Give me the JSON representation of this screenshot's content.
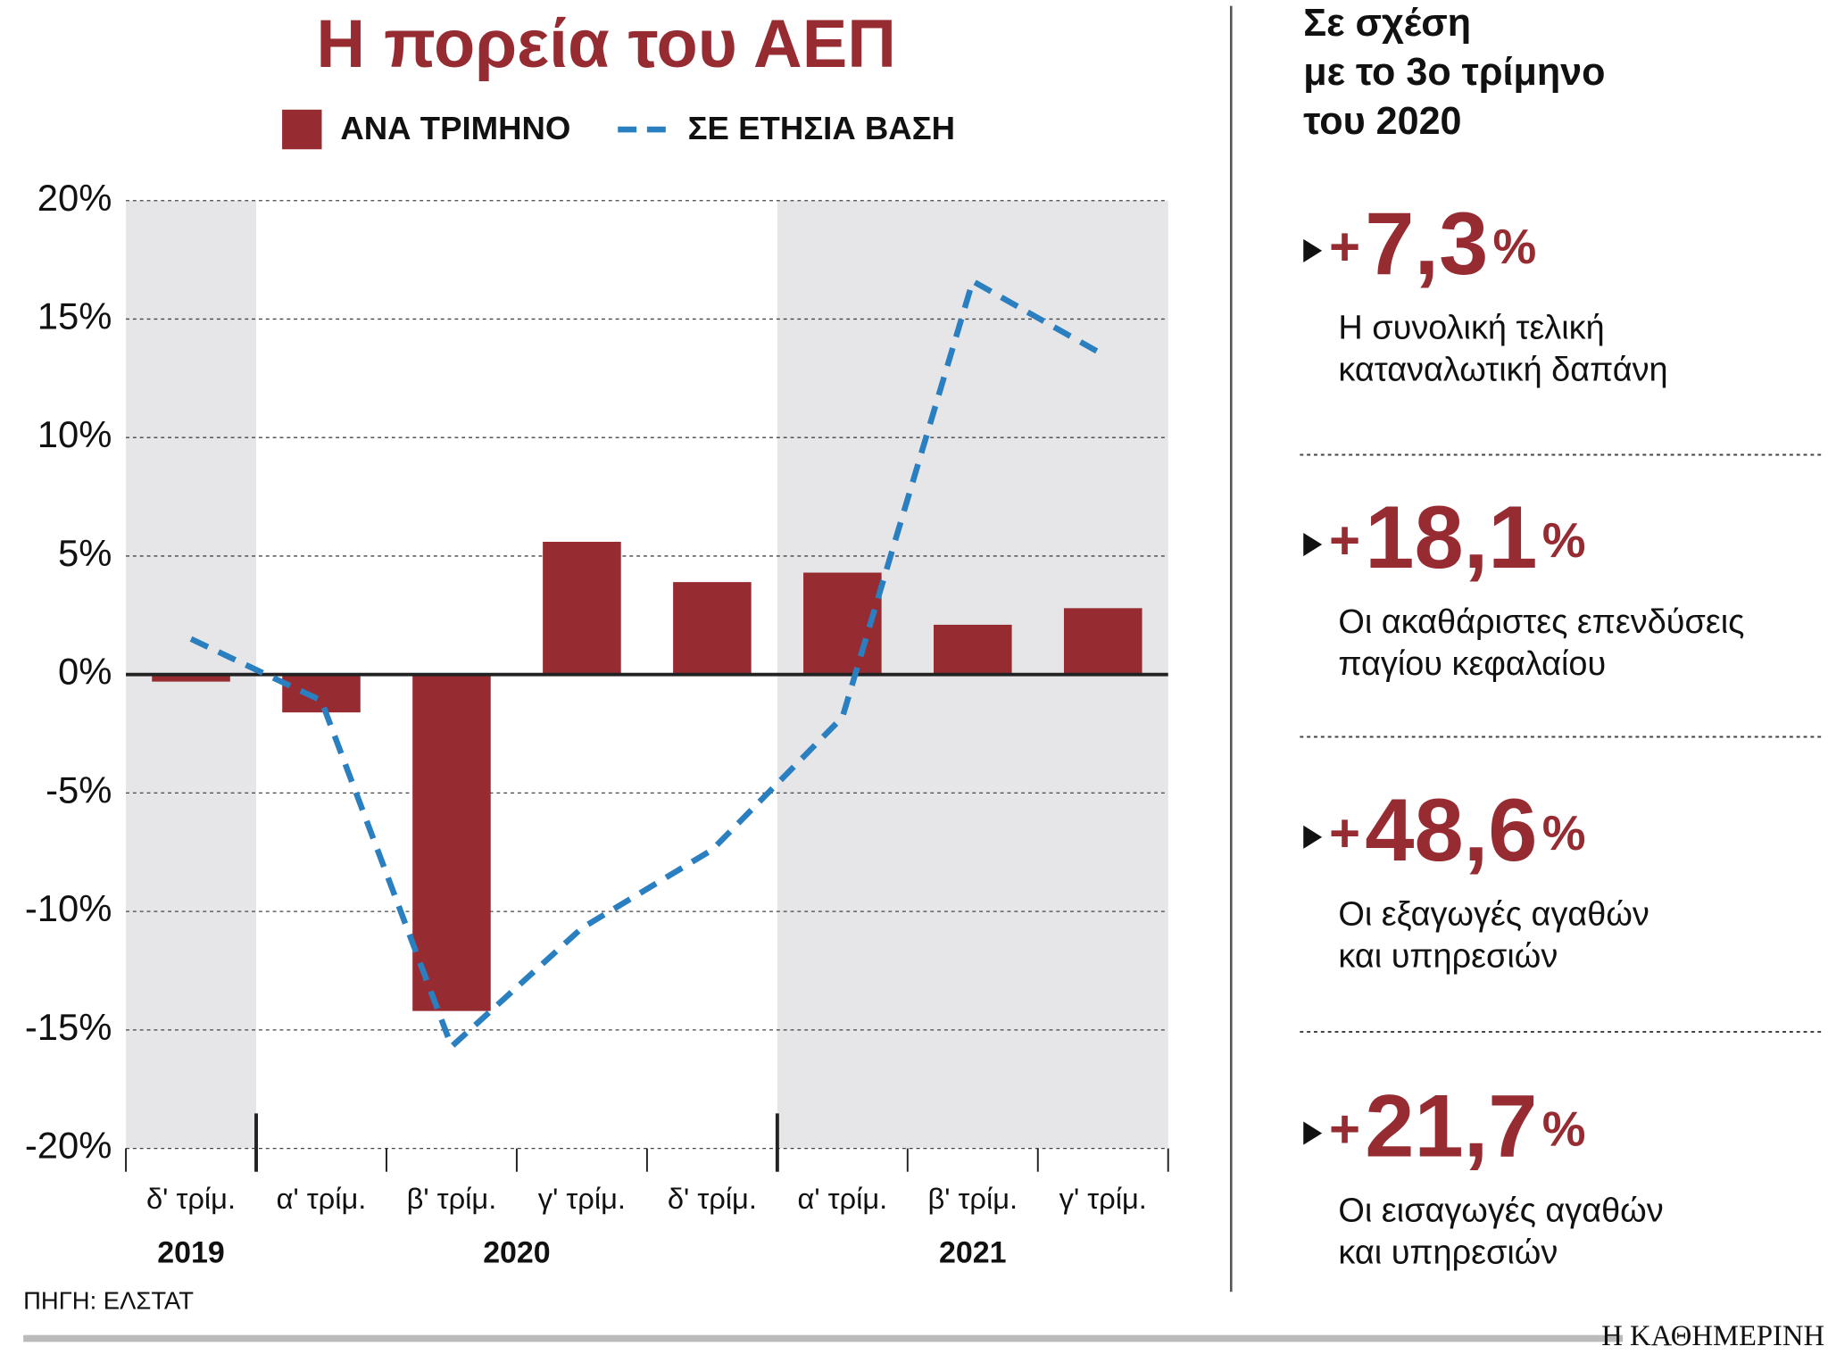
{
  "chart_data": {
    "type": "bar",
    "title": "Η πορεία του ΑΕΠ",
    "categories": [
      "δ' τρίμ.",
      "α' τρίμ.",
      "β' τρίμ.",
      "γ' τρίμ.",
      "δ' τρίμ.",
      "α' τρίμ.",
      "β' τρίμ.",
      "γ' τρίμ."
    ],
    "years": [
      "2019",
      "2020",
      "2021"
    ],
    "series": [
      {
        "name": "ΑΝΑ ΤΡΙΜΗΝΟ",
        "type": "bar",
        "color": "#962c32",
        "values": [
          -0.3,
          -1.6,
          -14.2,
          5.6,
          3.9,
          4.3,
          2.1,
          2.8
        ]
      },
      {
        "name": "ΣΕ ΕΤΗΣΙΑ ΒΑΣΗ",
        "type": "line",
        "color": "#2a7fc1",
        "values": [
          1.5,
          -1.1,
          -15.7,
          -10.7,
          -7.4,
          -1.8,
          16.6,
          13.5
        ]
      }
    ],
    "ylim": [
      -20,
      20
    ],
    "yticks": [
      {
        "value": -20,
        "label": "-20%"
      },
      {
        "value": -15,
        "label": "-15%"
      },
      {
        "value": -10,
        "label": "-10%"
      },
      {
        "value": -5,
        "label": "-5%"
      },
      {
        "value": 0,
        "label": "0%"
      },
      {
        "value": 5,
        "label": "5%"
      },
      {
        "value": 10,
        "label": "10%"
      },
      {
        "value": 15,
        "label": "15%"
      },
      {
        "value": 20,
        "label": "20%"
      }
    ],
    "grid": true,
    "source": "ΠΗΓΗ: ΕΛΣΤΑΤ"
  },
  "side_panel": {
    "title": [
      "Σε σχέση",
      "με το 3ο τρίμηνο",
      "του 2020"
    ],
    "items": [
      {
        "prefix": "+",
        "figure": "7,3",
        "suffix": "%",
        "text": [
          "Η συνολική τελική",
          "καταναλωτική δαπάνη"
        ]
      },
      {
        "prefix": "+",
        "figure": "18,1",
        "suffix": "%",
        "text": [
          "Οι ακαθάριστες επενδύσεις",
          "παγίου κεφαλαίου"
        ]
      },
      {
        "prefix": "+",
        "figure": "48,6",
        "suffix": "%",
        "text": [
          "Οι εξαγωγές αγαθών",
          "και υπηρεσιών"
        ]
      },
      {
        "prefix": "+",
        "figure": "21,7",
        "suffix": "%",
        "text": [
          "Οι εισαγωγές αγαθών",
          "και υπηρεσιών"
        ]
      }
    ]
  },
  "brand": "Η ΚΑΘΗΜΕΡΙΝΗ"
}
